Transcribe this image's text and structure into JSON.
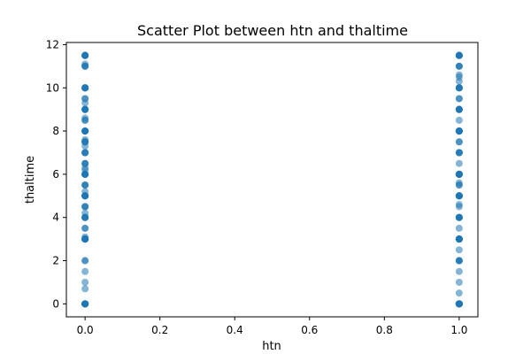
{
  "chart_data": {
    "type": "scatter",
    "title": "Scatter Plot between htn and thaltime",
    "xlabel": "htn",
    "ylabel": "thaltime",
    "xlim": [
      -0.05,
      1.05
    ],
    "ylim": [
      -0.6,
      12.1
    ],
    "xticks": [
      "0.0",
      "0.2",
      "0.4",
      "0.6",
      "0.8",
      "1.0"
    ],
    "yticks": [
      "0",
      "2",
      "4",
      "6",
      "8",
      "10",
      "12"
    ],
    "grid": false,
    "legend": "none",
    "color": "#1f77b4",
    "series": [
      {
        "x": [
          0,
          0,
          0,
          0,
          0,
          0,
          0,
          0,
          0,
          0,
          0,
          0,
          0,
          0,
          0,
          0,
          0,
          0,
          0,
          0,
          0,
          0,
          0,
          0,
          0,
          0,
          0,
          0,
          0,
          0,
          0,
          0,
          0,
          0,
          0,
          0,
          0,
          0,
          0,
          0,
          0,
          0,
          0,
          0,
          0,
          0,
          0,
          0,
          0,
          0,
          0,
          0,
          0,
          0,
          0,
          0,
          0,
          0,
          0,
          0,
          0,
          0,
          0,
          0,
          0,
          0,
          0,
          0,
          0,
          0,
          0,
          0,
          0,
          0,
          0,
          0,
          0,
          0,
          0,
          0,
          0,
          0,
          0,
          0,
          0,
          0,
          0,
          0,
          0,
          0,
          0,
          0,
          0,
          0,
          0,
          0,
          0,
          0,
          0,
          0,
          0,
          0,
          0,
          0
        ],
        "y": [
          0,
          0,
          0,
          0,
          0,
          0.7,
          1.0,
          1.5,
          2.0,
          3.0,
          3.0,
          3.0,
          3.1,
          3.5,
          3.5,
          4.0,
          4.0,
          4.0,
          4.2,
          4.5,
          4.5,
          5.0,
          5.0,
          5.0,
          5.2,
          5.5,
          5.5,
          6.0,
          6.0,
          6.0,
          6.2,
          6.3,
          6.5,
          6.5,
          7.0,
          7.0,
          7.0,
          7.3,
          7.5,
          7.5,
          7.5,
          7.6,
          8.0,
          8.0,
          8.0,
          8.5,
          8.5,
          8.6,
          9.0,
          9.0,
          9.0,
          9.0,
          9.3,
          9.5,
          9.5,
          10.0,
          10.0,
          10.0,
          11.0,
          11.0,
          11.1,
          11.5,
          11.5,
          11.5,
          11.5,
          11.5,
          0,
          0,
          3.0,
          3.0,
          5.0,
          6.0,
          8.0,
          9.0,
          10.0,
          11.5,
          4.5,
          5.5,
          7.0,
          0,
          2.0,
          4.0,
          6.5,
          8.0,
          9.0,
          10.0,
          3.0,
          5.0,
          6.0,
          7.5,
          0,
          0,
          0,
          3.0,
          3.0,
          4.0,
          5.0,
          6.0,
          8.0,
          9.0,
          11.5,
          11.0,
          10.0,
          0
        ]
      },
      {
        "x": [
          1,
          1,
          1,
          1,
          1,
          1,
          1,
          1,
          1,
          1,
          1,
          1,
          1,
          1,
          1,
          1,
          1,
          1,
          1,
          1,
          1,
          1,
          1,
          1,
          1,
          1,
          1,
          1,
          1,
          1,
          1,
          1,
          1,
          1,
          1,
          1,
          1,
          1,
          1,
          1,
          1,
          1,
          1,
          1,
          1,
          1,
          1,
          1,
          1,
          1,
          1,
          1,
          1,
          1,
          1,
          1,
          1,
          1,
          1,
          1,
          1,
          1,
          1,
          1,
          1,
          1,
          1,
          1,
          1,
          1,
          1,
          1,
          1,
          1,
          1,
          1,
          1,
          1,
          1,
          1,
          1,
          1,
          1,
          1,
          1,
          1,
          1,
          1,
          1,
          1,
          1,
          1,
          1,
          1,
          1,
          1,
          1,
          1,
          1,
          1
        ],
        "y": [
          0,
          0,
          0,
          0,
          0,
          0.5,
          1.0,
          1.5,
          2.0,
          2.0,
          2.5,
          3.0,
          3.0,
          3.0,
          3.5,
          4.0,
          4.0,
          4.0,
          4.5,
          4.6,
          5.0,
          5.0,
          5.0,
          5.5,
          5.6,
          6.0,
          6.0,
          6.0,
          6.5,
          7.0,
          7.0,
          7.0,
          7.5,
          8.0,
          8.0,
          8.0,
          8.5,
          9.0,
          9.0,
          9.0,
          9.5,
          10.0,
          10.0,
          10.3,
          10.5,
          10.6,
          11.0,
          11.0,
          11.5,
          11.5,
          11.5,
          11.5,
          0,
          0,
          0,
          3.0,
          3.0,
          4.0,
          5.0,
          6.0,
          8.0,
          9.0,
          10.0,
          11.5,
          2.0,
          3.0,
          5.0,
          6.0,
          7.5,
          8.0,
          9.0,
          11.0,
          0,
          4.0,
          5.0,
          6.0,
          7.0,
          8.0,
          9.5,
          10.0,
          0,
          0,
          3.0,
          3.0,
          4.0,
          5.5,
          6.0,
          8.0,
          9.0,
          11.5,
          0,
          2.0,
          3.0,
          5.0,
          6.0,
          8.0,
          10.0,
          11.5,
          0,
          9.0
        ]
      }
    ]
  }
}
